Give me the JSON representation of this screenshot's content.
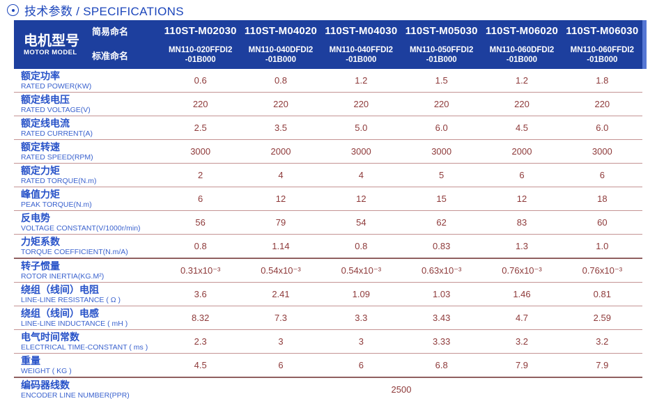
{
  "title": {
    "icon": "circle-dot",
    "text": "技术参数 / SPECIFICATIONS"
  },
  "colors": {
    "accent_blue": "#1c46bb",
    "header_bg": "#1d3f9e",
    "header_edge_highlight": "#5577d4",
    "label_blue": "#2752c8",
    "value_red": "#8e3a3a",
    "divider_pink": "#c49393",
    "divider_dark": "#8f5f5f"
  },
  "header": {
    "motor_model_cn": "电机型号",
    "motor_model_en": "MOTOR MODEL",
    "simple_name_label": "简易命名",
    "standard_name_label": "标准命名",
    "columns": [
      {
        "simple": "110ST-M02030",
        "standard_line1": "MN110-020FFDI2",
        "standard_line2": "-01B000"
      },
      {
        "simple": "110ST-M04020",
        "standard_line1": "MN110-040DFDI2",
        "standard_line2": "-01B000"
      },
      {
        "simple": "110ST-M04030",
        "standard_line1": "MN110-040FFDI2",
        "standard_line2": "-01B000"
      },
      {
        "simple": "110ST-M05030",
        "standard_line1": "MN110-050FFDI2",
        "standard_line2": "-01B000"
      },
      {
        "simple": "110ST-M06020",
        "standard_line1": "MN110-060DFDI2",
        "standard_line2": "-01B000"
      },
      {
        "simple": "110ST-M06030",
        "standard_line1": "MN110-060FFDI2",
        "standard_line2": "-01B000"
      }
    ]
  },
  "rows": [
    {
      "cn": "额定功率",
      "en": "RATED POWER(KW)",
      "values": [
        "0.6",
        "0.8",
        "1.2",
        "1.5",
        "1.2",
        "1.8"
      ]
    },
    {
      "cn": "额定线电压",
      "en": "RATED VOLTAGE(V)",
      "values": [
        "220",
        "220",
        "220",
        "220",
        "220",
        "220"
      ]
    },
    {
      "cn": "额定线电流",
      "en": "RATED CURRENT(A)",
      "values": [
        "2.5",
        "3.5",
        "5.0",
        "6.0",
        "4.5",
        "6.0"
      ]
    },
    {
      "cn": "额定转速",
      "en": "RATED SPEED(RPM)",
      "values": [
        "3000",
        "2000",
        "3000",
        "3000",
        "2000",
        "3000"
      ]
    },
    {
      "cn": "额定力矩",
      "en": "RATED TORQUE(N.m)",
      "values": [
        "2",
        "4",
        "4",
        "5",
        "6",
        "6"
      ]
    },
    {
      "cn": "峰值力矩",
      "en": "PEAK TORQUE(N.m)",
      "values": [
        "6",
        "12",
        "12",
        "15",
        "12",
        "18"
      ]
    },
    {
      "cn": "反电势",
      "en": "VOLTAGE CONSTANT(V/1000r/min)",
      "values": [
        "56",
        "79",
        "54",
        "62",
        "83",
        "60"
      ]
    },
    {
      "cn": "力矩系数",
      "en": "TORQUE COEFFICIENT(N.m/A)",
      "values": [
        "0.8",
        "1.14",
        "0.8",
        "0.83",
        "1.3",
        "1.0"
      ]
    },
    {
      "cn": "转子惯量",
      "en": "ROTOR INERTIA(KG.M²)",
      "values": [
        "0.31x10⁻³",
        "0.54x10⁻³",
        "0.54x10⁻³",
        "0.63x10⁻³",
        "0.76x10⁻³",
        "0.76x10⁻³"
      ]
    },
    {
      "cn": "绕组（线间）电阻",
      "en": "LINE-LINE RESISTANCE ( Ω )",
      "values": [
        "3.6",
        "2.41",
        "1.09",
        "1.03",
        "1.46",
        "0.81"
      ]
    },
    {
      "cn": "绕组（线间）电感",
      "en": "LINE-LINE INDUCTANCE ( mH )",
      "values": [
        "8.32",
        "7.3",
        "3.3",
        "3.43",
        "4.7",
        "2.59"
      ]
    },
    {
      "cn": "电气时间常数",
      "en": "ELECTRICAL TIME-CONSTANT ( ms )",
      "values": [
        "2.3",
        "3",
        "3",
        "3.33",
        "3.2",
        "3.2"
      ]
    },
    {
      "cn": "重量",
      "en": "WEIGHT ( KG )",
      "values": [
        "4.5",
        "6",
        "6",
        "6.8",
        "7.9",
        "7.9"
      ]
    },
    {
      "cn": "编码器线数",
      "en": "ENCODER LINE NUMBER(PPR)",
      "span_value": "2500"
    }
  ]
}
